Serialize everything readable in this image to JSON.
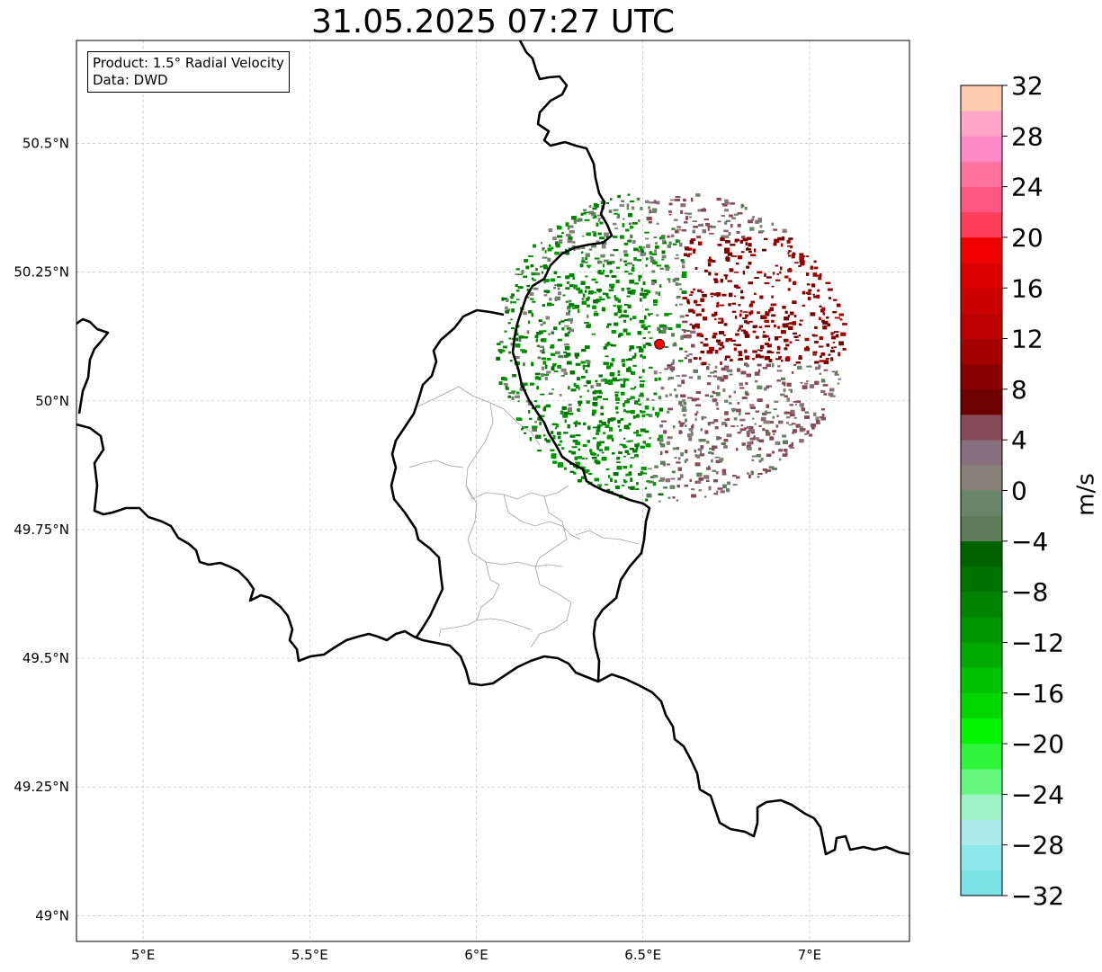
{
  "title": "31.05.2025 07:27 UTC",
  "infobox": {
    "product": "Product: 1.5° Radial Velocity",
    "source": "Data: DWD"
  },
  "map": {
    "lon_range": [
      4.8,
      7.3
    ],
    "lat_range": [
      48.95,
      50.7
    ],
    "lon_ticks": [
      {
        "value": 5.0,
        "label": "5°E"
      },
      {
        "value": 5.5,
        "label": "5.5°E"
      },
      {
        "value": 6.0,
        "label": "6°E"
      },
      {
        "value": 6.5,
        "label": "6.5°E"
      },
      {
        "value": 7.0,
        "label": "7°E"
      }
    ],
    "lat_ticks": [
      {
        "value": 49.0,
        "label": "49°N"
      },
      {
        "value": 49.25,
        "label": "49.25°N"
      },
      {
        "value": 49.5,
        "label": "49.5°N"
      },
      {
        "value": 49.75,
        "label": "49.75°N"
      },
      {
        "value": 50.0,
        "label": "50°N"
      },
      {
        "value": 50.25,
        "label": "50.25°N"
      },
      {
        "value": 50.5,
        "label": "50.5°N"
      }
    ],
    "gridlines": true,
    "radar_site": {
      "lon": 6.55,
      "lat": 50.11,
      "marker_color": "#ff0000"
    },
    "colors": {
      "border": "#000000",
      "admin": "#a0a0a0",
      "grid": "#bdbdbd"
    }
  },
  "colorbar": {
    "units": "m/s",
    "range": [
      -32,
      32
    ],
    "step": 2,
    "tick_labels": [
      "32",
      "28",
      "24",
      "20",
      "16",
      "12",
      "8",
      "4",
      "0",
      "−4",
      "−8",
      "−12",
      "−16",
      "−20",
      "−24",
      "−28",
      "−32"
    ],
    "colors_bottom_to_top": [
      "#78e2e6",
      "#8ce8eb",
      "#aceaec",
      "#9ef3c9",
      "#66f57d",
      "#2ef53a",
      "#02f502",
      "#00d600",
      "#00c200",
      "#00ab00",
      "#009600",
      "#008400",
      "#007200",
      "#006300",
      "#5c7d58",
      "#69866a",
      "#878078",
      "#876f7d",
      "#884a56",
      "#6e0000",
      "#8a0000",
      "#a60000",
      "#bd0000",
      "#cc0000",
      "#de0000",
      "#f00000",
      "#ff3d5b",
      "#ff5682",
      "#ff73a1",
      "#ff8acb",
      "#ffa6c8",
      "#ffccb0"
    ]
  }
}
